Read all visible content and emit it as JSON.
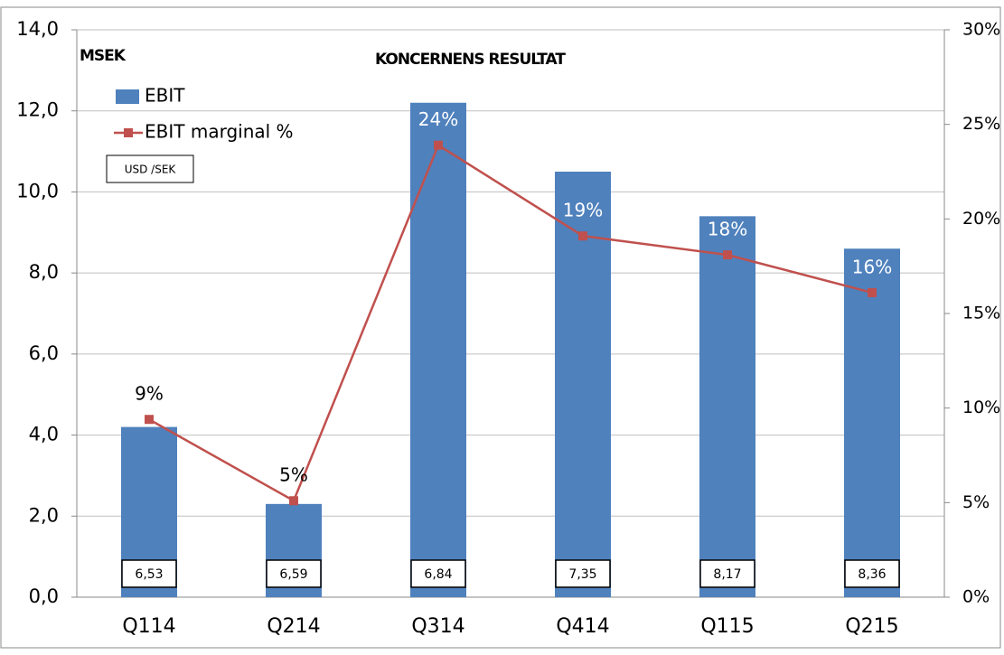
{
  "chart_data": {
    "type": "bar_line",
    "title": "KONCERNENS RESULTAT",
    "unit_label": "MSEK",
    "categories": [
      "Q114",
      "Q214",
      "Q314",
      "Q414",
      "Q115",
      "Q215"
    ],
    "series": [
      {
        "name": "EBIT",
        "color": "#4f81bd",
        "type": "bar",
        "values": [
          4.2,
          2.3,
          12.2,
          10.5,
          9.4,
          8.6
        ]
      },
      {
        "name": "EBIT marginal %",
        "color": "#c0504d",
        "type": "line",
        "axis": "y2",
        "values": [
          9.4,
          5.1,
          23.9,
          19.1,
          18.1,
          16.1
        ],
        "value_labels": [
          "9%",
          "5%",
          "24%",
          "19%",
          "18%",
          "16%"
        ]
      }
    ],
    "rate_label": "USD /SEK",
    "rates": [
      "6,53",
      "6,59",
      "6,84",
      "7,35",
      "8,17",
      "8,36"
    ],
    "ylim": [
      0,
      14
    ],
    "yticks": [
      {
        "value": 0,
        "label": "0,0"
      },
      {
        "value": 2,
        "label": "2,0"
      },
      {
        "value": 4,
        "label": "4,0"
      },
      {
        "value": 6,
        "label": "6,0"
      },
      {
        "value": 8,
        "label": "8,0"
      },
      {
        "value": 10,
        "label": "10,0"
      },
      {
        "value": 12,
        "label": "12,0"
      },
      {
        "value": 14,
        "label": "14,0"
      }
    ],
    "y2lim": [
      0,
      30
    ],
    "y2ticks": [
      {
        "value": 0,
        "label": "0%"
      },
      {
        "value": 5,
        "label": "5%"
      },
      {
        "value": 10,
        "label": "10%"
      },
      {
        "value": 15,
        "label": "15%"
      },
      {
        "value": 20,
        "label": "20%"
      },
      {
        "value": 25,
        "label": "25%"
      },
      {
        "value": 30,
        "label": "30%"
      }
    ],
    "grid": true
  }
}
